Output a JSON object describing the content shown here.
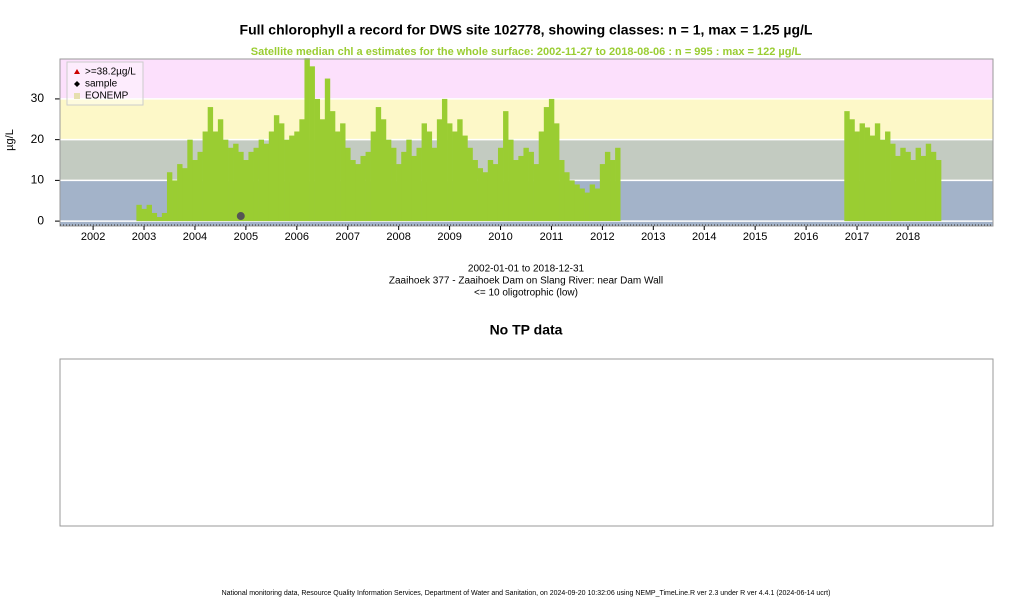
{
  "chart_data": {
    "type": "bar",
    "title": "Full chlorophyll a record for DWS site 102778, showing classes: n = 1, max = 1.25 µg/L",
    "subtitle": "Satellite median chl a estimates for the whole surface: 2002-11-27 to 2018-08-06 : n = 995 : max = 122 µg/L",
    "ylabel": "µg/L",
    "xlim": [
      2001.35,
      2019.67
    ],
    "xticks": [
      2002,
      2003,
      2004,
      2005,
      2006,
      2007,
      2008,
      2009,
      2010,
      2011,
      2012,
      2013,
      2014,
      2015,
      2016,
      2017,
      2018
    ],
    "ylim": [
      -1.2,
      39.8
    ],
    "yticks": [
      0,
      10,
      20,
      30
    ],
    "grid": true,
    "bands": [
      {
        "to": 10,
        "color": "#a3b3c9"
      },
      {
        "to": 20,
        "color": "#c3cbc1"
      },
      {
        "to": 30,
        "color": "#fdf8c8"
      },
      {
        "to": 39.8,
        "color": "#fce0fc"
      }
    ],
    "satellite": {
      "color": "#9acd32",
      "x": [
        2002.9,
        2003.0,
        2003.1,
        2003.2,
        2003.3,
        2003.4,
        2003.5,
        2003.6,
        2003.7,
        2003.8,
        2003.9,
        2004.0,
        2004.1,
        2004.2,
        2004.3,
        2004.4,
        2004.5,
        2004.6,
        2004.7,
        2004.8,
        2004.9,
        2005.0,
        2005.1,
        2005.2,
        2005.3,
        2005.4,
        2005.5,
        2005.6,
        2005.7,
        2005.8,
        2005.9,
        2006.0,
        2006.1,
        2006.2,
        2006.3,
        2006.4,
        2006.5,
        2006.6,
        2006.7,
        2006.8,
        2006.9,
        2007.0,
        2007.1,
        2007.2,
        2007.3,
        2007.4,
        2007.5,
        2007.6,
        2007.7,
        2007.8,
        2007.9,
        2008.0,
        2008.1,
        2008.2,
        2008.3,
        2008.4,
        2008.5,
        2008.6,
        2008.7,
        2008.8,
        2008.9,
        2009.0,
        2009.1,
        2009.2,
        2009.3,
        2009.4,
        2009.5,
        2009.6,
        2009.7,
        2009.8,
        2009.9,
        2010.0,
        2010.1,
        2010.2,
        2010.3,
        2010.4,
        2010.5,
        2010.6,
        2010.7,
        2010.8,
        2010.9,
        2011.0,
        2011.1,
        2011.2,
        2011.3,
        2011.4,
        2011.5,
        2011.6,
        2011.7,
        2011.8,
        2011.9,
        2012.0,
        2012.1,
        2012.2,
        2012.3,
        2016.8,
        2016.9,
        2017.0,
        2017.1,
        2017.2,
        2017.3,
        2017.4,
        2017.5,
        2017.6,
        2017.7,
        2017.8,
        2017.9,
        2018.0,
        2018.1,
        2018.2,
        2018.3,
        2018.4,
        2018.5,
        2018.6
      ],
      "values": [
        4,
        3,
        4,
        2,
        1,
        2,
        12,
        10,
        14,
        13,
        20,
        15,
        17,
        22,
        28,
        22,
        25,
        20,
        18,
        19,
        17,
        15,
        17,
        18,
        20,
        19,
        22,
        26,
        24,
        20,
        21,
        22,
        25,
        40,
        38,
        30,
        25,
        35,
        27,
        22,
        24,
        18,
        15,
        14,
        16,
        17,
        22,
        28,
        25,
        20,
        18,
        14,
        17,
        20,
        16,
        18,
        24,
        22,
        18,
        25,
        30,
        24,
        22,
        25,
        21,
        18,
        15,
        13,
        12,
        15,
        14,
        18,
        27,
        20,
        15,
        16,
        18,
        17,
        14,
        22,
        28,
        30,
        24,
        15,
        12,
        10,
        9,
        8,
        7,
        9,
        8,
        14,
        17,
        15,
        18,
        27,
        25,
        22,
        24,
        23,
        21,
        24,
        20,
        22,
        19,
        16,
        18,
        17,
        15,
        18,
        16,
        19,
        17,
        15
      ]
    },
    "sample": {
      "x": 2004.9,
      "value": 1.25,
      "color": "#555555"
    },
    "legend": [
      {
        "label": ">=38.2µg/L",
        "color": "#cc0000",
        "shape": "triangle"
      },
      {
        "label": "sample",
        "color": "#000000",
        "shape": "diamond"
      },
      {
        "label": "EONEMP",
        "color": "#e6dfb0",
        "shape": "square"
      }
    ],
    "captions": [
      "2002-01-01 to 2018-12-31",
      "Zaaihoek 377 - Zaaihoek Dam on Slang River: near Dam Wall",
      "<= 10 oligotrophic (low)"
    ]
  },
  "tp_panel": {
    "title": "No TP data"
  },
  "footer": "National monitoring data, Resource Quality Information Services, Department of Water and Sanitation, on 2024-09-20 10:32:06 using NEMP_TimeLine.R ver 2.3 under R ver 4.4.1 (2024-06-14 ucrt)"
}
